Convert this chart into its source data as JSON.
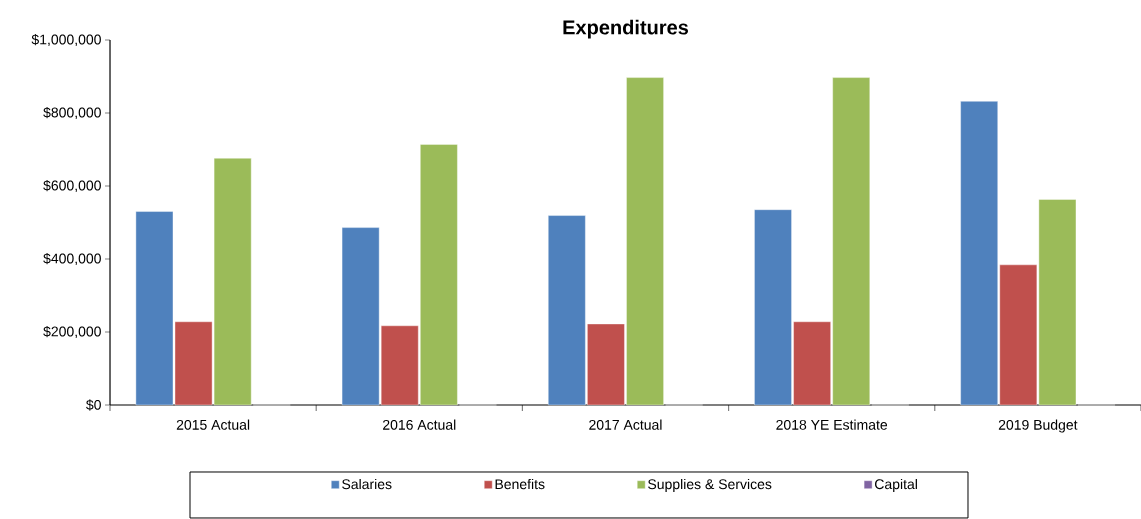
{
  "chart_data": {
    "type": "bar",
    "title": "Expenditures",
    "categories": [
      "2015 Actual",
      "2016 Actual",
      "2017 Actual",
      "2018 YE Estimate",
      "2019 Budget"
    ],
    "series": [
      {
        "name": "Salaries",
        "color": "#4f81bd",
        "values": [
          530000,
          486000,
          519000,
          535000,
          832000
        ]
      },
      {
        "name": "Benefits",
        "color": "#c0504d",
        "values": [
          228000,
          217000,
          222000,
          228000,
          384000
        ]
      },
      {
        "name": "Supplies & Services",
        "color": "#9bbb59",
        "values": [
          676000,
          714000,
          897000,
          897000,
          563000
        ]
      },
      {
        "name": "Capital",
        "color": "#8064a2",
        "values": [
          0,
          0,
          0,
          0,
          0
        ]
      }
    ],
    "ylim": [
      0,
      1000000
    ],
    "yticks": [
      {
        "value": 0,
        "label": "$0"
      },
      {
        "value": 200000,
        "label": "$200,000"
      },
      {
        "value": 400000,
        "label": "$400,000"
      },
      {
        "value": 600000,
        "label": "$600,000"
      },
      {
        "value": 800000,
        "label": "$800,000"
      },
      {
        "value": 1000000,
        "label": "$1,000,000"
      }
    ],
    "grid": false,
    "legend": "bottom"
  }
}
